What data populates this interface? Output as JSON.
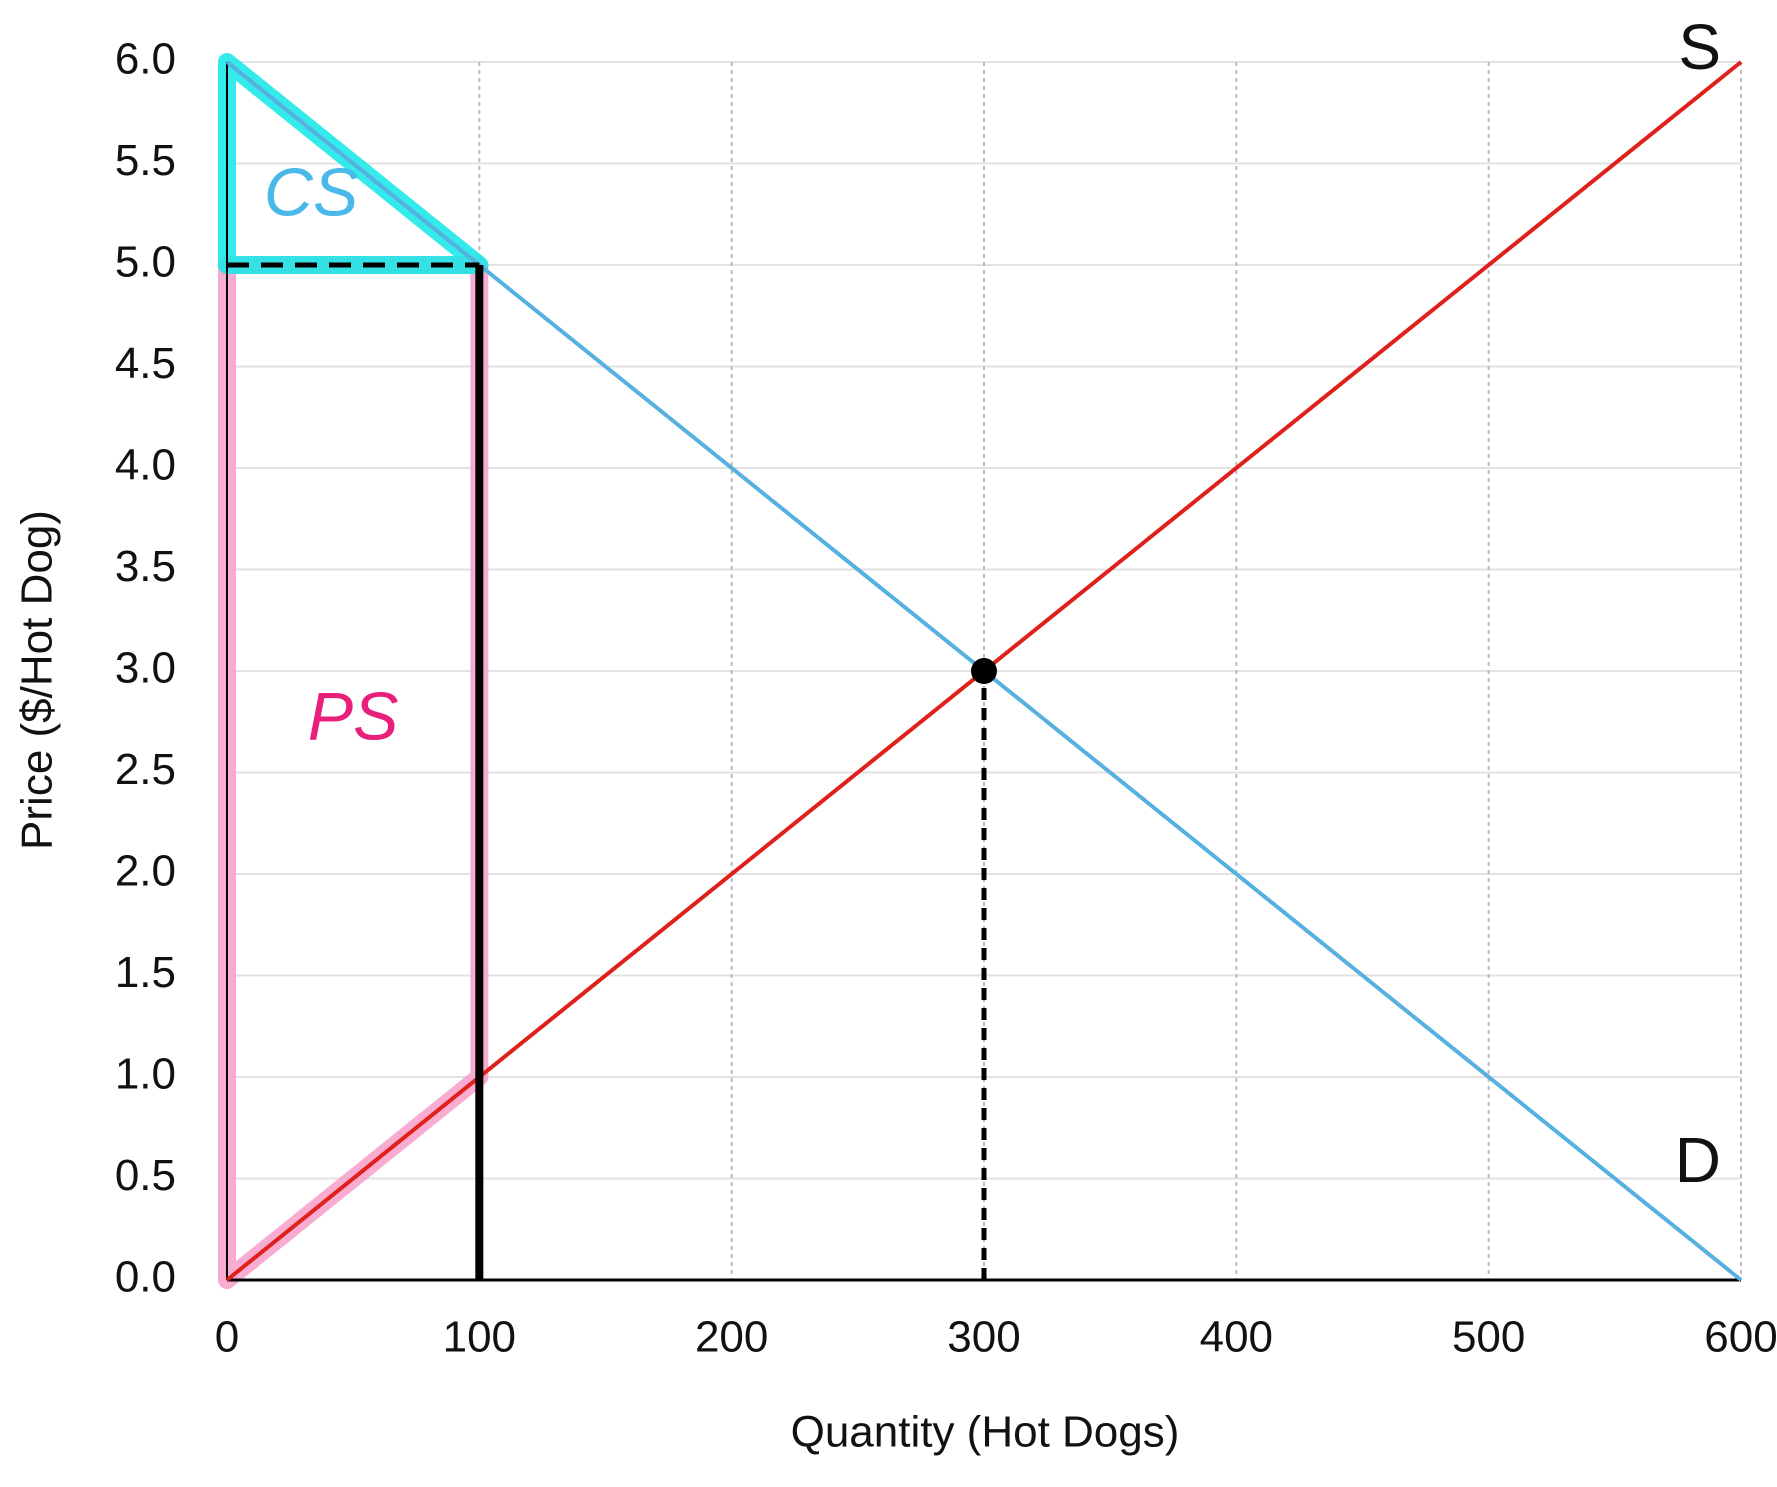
{
  "chart_data": {
    "type": "line",
    "xlabel": "Quantity (Hot Dogs)",
    "ylabel": "Price ($/Hot Dog)",
    "xlim": [
      0,
      600
    ],
    "xticks": [
      0,
      100,
      200,
      300,
      400,
      500,
      600
    ],
    "ylim": [
      0,
      6
    ],
    "yticks": [
      {
        "value": 0,
        "label": "0.0"
      },
      0.5,
      {
        "value": 1,
        "label": "1.0"
      },
      1.5,
      {
        "value": 2,
        "label": "2.0"
      },
      2.5,
      {
        "value": 3,
        "label": "3.0"
      },
      3.5,
      {
        "value": 4,
        "label": "4.0"
      },
      4.5,
      {
        "value": 5,
        "label": "5.0"
      },
      5.5,
      {
        "value": 6,
        "label": "6.0"
      }
    ],
    "grid": true,
    "series": [
      {
        "name": "S",
        "color": "#e0201b",
        "x": [
          0,
          600
        ],
        "values": [
          0,
          6
        ]
      },
      {
        "name": "D",
        "color": "#56b0e0",
        "x": [
          0,
          600
        ],
        "values": [
          6,
          0
        ]
      }
    ],
    "points": [
      {
        "x": 300,
        "y": 3,
        "color": "#000000"
      }
    ],
    "reference_lines": [
      {
        "x": [
          0,
          100
        ],
        "values": [
          5,
          5
        ],
        "style": "dashed"
      },
      {
        "x": [
          100,
          100
        ],
        "values": [
          0,
          5
        ],
        "style": "solid"
      },
      {
        "x": [
          300,
          300
        ],
        "values": [
          0,
          3
        ],
        "style": "dotted"
      }
    ],
    "regions": [
      {
        "label": "PS",
        "color": "#f7a3cc",
        "text_color": "#e8207a",
        "points": [
          [
            0,
            0
          ],
          [
            0,
            5
          ],
          [
            100,
            5
          ],
          [
            100,
            1
          ]
        ]
      },
      {
        "label": "CS",
        "color": "#1ee8e8",
        "text_color": "#4ab8e8",
        "points": [
          [
            0,
            6
          ],
          [
            0,
            5
          ],
          [
            100,
            5
          ]
        ]
      }
    ]
  }
}
